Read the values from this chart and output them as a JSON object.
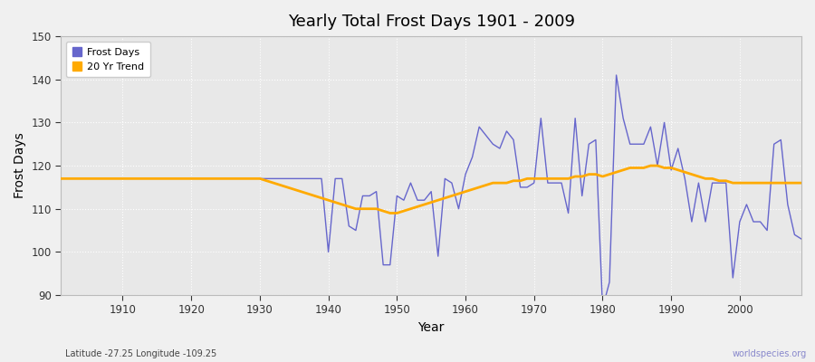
{
  "title": "Yearly Total Frost Days 1901 - 2009",
  "xlabel": "Year",
  "ylabel": "Frost Days",
  "footnote_left": "Latitude -27.25 Longitude -109.25",
  "footnote_right": "worldspecies.org",
  "ylim": [
    90,
    150
  ],
  "xlim": [
    1901,
    2009
  ],
  "bg_color": "#f0f0f0",
  "plot_bg_color": "#e8e8e8",
  "line_color_frost": "#6666cc",
  "line_color_trend": "#ffaa00",
  "years": [
    1901,
    1902,
    1903,
    1904,
    1905,
    1906,
    1907,
    1908,
    1909,
    1910,
    1911,
    1912,
    1913,
    1914,
    1915,
    1916,
    1917,
    1918,
    1919,
    1920,
    1921,
    1922,
    1923,
    1924,
    1925,
    1926,
    1927,
    1928,
    1929,
    1930,
    1931,
    1932,
    1933,
    1934,
    1935,
    1936,
    1937,
    1938,
    1939,
    1940,
    1941,
    1942,
    1943,
    1944,
    1945,
    1946,
    1947,
    1948,
    1949,
    1950,
    1951,
    1952,
    1953,
    1954,
    1955,
    1956,
    1957,
    1958,
    1959,
    1960,
    1961,
    1962,
    1963,
    1964,
    1965,
    1966,
    1967,
    1968,
    1969,
    1970,
    1971,
    1972,
    1973,
    1974,
    1975,
    1976,
    1977,
    1978,
    1979,
    1980,
    1981,
    1982,
    1983,
    1984,
    1985,
    1986,
    1987,
    1988,
    1989,
    1990,
    1991,
    1992,
    1993,
    1994,
    1995,
    1996,
    1997,
    1998,
    1999,
    2000,
    2001,
    2002,
    2003,
    2004,
    2005,
    2006,
    2007,
    2008,
    2009
  ],
  "frost_days": [
    117,
    117,
    117,
    117,
    117,
    117,
    117,
    117,
    117,
    117,
    117,
    117,
    117,
    117,
    117,
    117,
    117,
    117,
    117,
    117,
    117,
    117,
    117,
    117,
    117,
    117,
    117,
    117,
    117,
    117,
    117,
    117,
    117,
    117,
    117,
    117,
    117,
    117,
    117,
    100,
    117,
    117,
    106,
    105,
    113,
    113,
    114,
    97,
    97,
    113,
    112,
    116,
    112,
    112,
    114,
    99,
    117,
    116,
    110,
    118,
    122,
    129,
    127,
    125,
    124,
    128,
    126,
    115,
    115,
    116,
    131,
    116,
    116,
    116,
    109,
    131,
    113,
    125,
    126,
    87,
    93,
    141,
    131,
    125,
    125,
    125,
    129,
    120,
    130,
    119,
    124,
    117,
    107,
    116,
    107,
    116,
    116,
    116,
    94,
    107,
    111,
    107,
    107,
    105,
    125,
    126,
    111,
    104,
    103
  ],
  "trend_start_year": 1901,
  "trend_values_by_year": {
    "1901": 117,
    "1902": 117,
    "1903": 117,
    "1904": 117,
    "1905": 117,
    "1906": 117,
    "1907": 117,
    "1908": 117,
    "1909": 117,
    "1910": 117,
    "1911": 117,
    "1912": 117,
    "1913": 117,
    "1914": 117,
    "1915": 117,
    "1916": 117,
    "1917": 117,
    "1918": 117,
    "1919": 117,
    "1920": 117,
    "1921": 117,
    "1922": 117,
    "1923": 117,
    "1924": 117,
    "1925": 117,
    "1926": 117,
    "1927": 117,
    "1928": 117,
    "1929": 117,
    "1930": 117,
    "1931": 116.5,
    "1932": 116,
    "1933": 115.5,
    "1934": 115,
    "1935": 114.5,
    "1936": 114,
    "1937": 113.5,
    "1938": 113,
    "1939": 112.5,
    "1940": 112,
    "1941": 111.5,
    "1942": 111,
    "1943": 110.5,
    "1944": 110,
    "1945": 110,
    "1946": 110,
    "1947": 110,
    "1948": 109.5,
    "1949": 109,
    "1950": 109,
    "1951": 109.5,
    "1952": 110,
    "1953": 110.5,
    "1954": 111,
    "1955": 111.5,
    "1956": 112,
    "1957": 112.5,
    "1958": 113,
    "1959": 113.5,
    "1960": 114,
    "1961": 114.5,
    "1962": 115,
    "1963": 115.5,
    "1964": 116,
    "1965": 116,
    "1966": 116,
    "1967": 116.5,
    "1968": 116.5,
    "1969": 117,
    "1970": 117,
    "1971": 117,
    "1972": 117,
    "1973": 117,
    "1974": 117,
    "1975": 117,
    "1976": 117.5,
    "1977": 117.5,
    "1978": 118,
    "1979": 118,
    "1980": 117.5,
    "1981": 118,
    "1982": 118.5,
    "1983": 119,
    "1984": 119.5,
    "1985": 119.5,
    "1986": 119.5,
    "1987": 120,
    "1988": 120,
    "1989": 119.5,
    "1990": 119.5,
    "1991": 119,
    "1992": 118.5,
    "1993": 118,
    "1994": 117.5,
    "1995": 117,
    "1996": 117,
    "1997": 116.5,
    "1998": 116.5,
    "1999": 116,
    "2000": 116,
    "2001": 116,
    "2002": 116,
    "2003": 116,
    "2004": 116,
    "2005": 116,
    "2006": 116,
    "2007": 116,
    "2008": 116,
    "2009": 116
  }
}
